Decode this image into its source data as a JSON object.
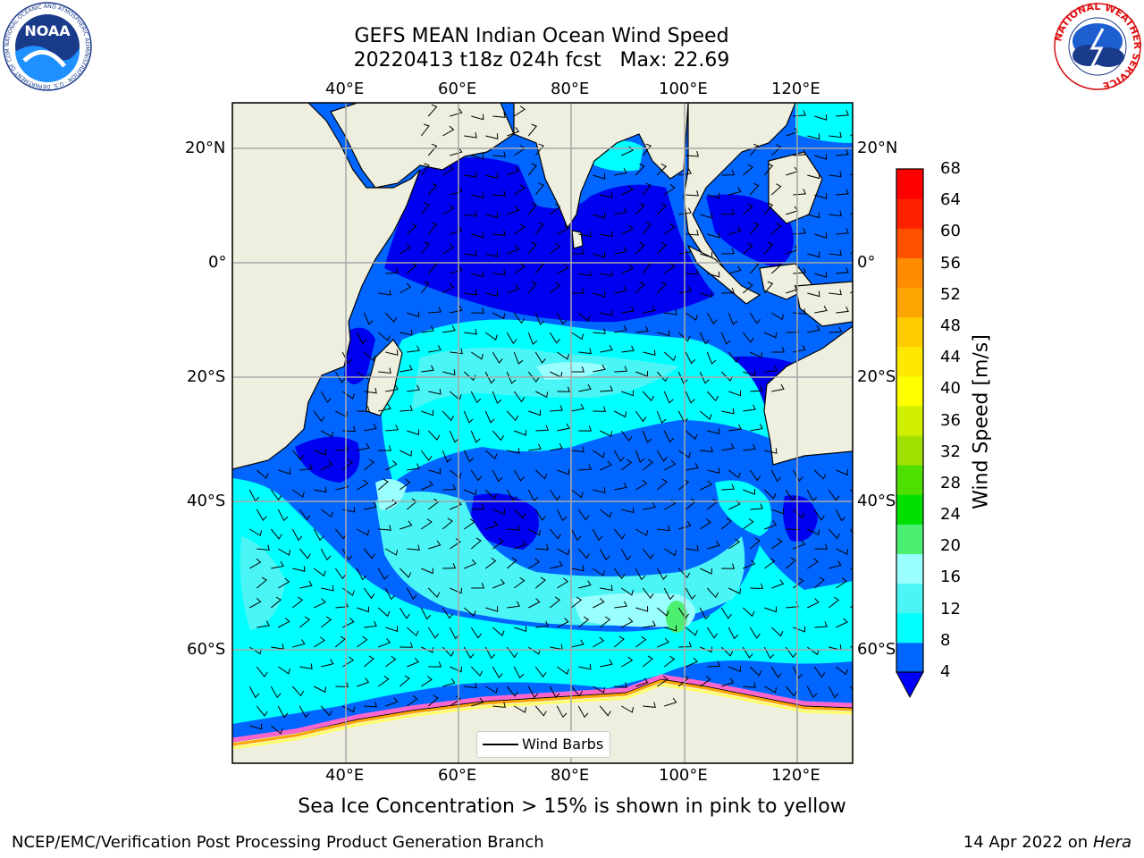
{
  "title": {
    "line1": "GEFS MEAN Indian Ocean Wind Speed",
    "line2": "20220413 t18z 024h fcst   Max: 22.69"
  },
  "logos": {
    "noaa": {
      "center_text": "NOAA",
      "ring_text": "NATIONAL OCEANIC AND ATMOSPHERIC ADMINISTRATION · U.S. DEPARTMENT OF COMMERCE"
    },
    "nws": {
      "ring_text": "NATIONAL WEATHER SERVICE"
    }
  },
  "map": {
    "lon_labels": [
      "40°E",
      "60°E",
      "80°E",
      "100°E",
      "120°E"
    ],
    "lat_labels": [
      "20°N",
      "0°",
      "20°S",
      "40°S",
      "60°S"
    ],
    "legend_label": "Wind Barbs",
    "colors": {
      "land": "#efefdf",
      "ice_shelf": "#ffffff",
      "ice_edge": [
        "#ff66cc",
        "#ffa500",
        "#ffff66"
      ],
      "grid": "#a8a8a8"
    }
  },
  "colorbar": {
    "title": "Wind Speed [m/s]",
    "ticks": [
      "4",
      "8",
      "12",
      "16",
      "20",
      "24",
      "28",
      "32",
      "36",
      "40",
      "44",
      "48",
      "52",
      "56",
      "60",
      "64",
      "68"
    ],
    "colors": [
      "#0066ff",
      "#00ffff",
      "#4cf5f5",
      "#99ffff",
      "#4cf071",
      "#00e000",
      "#4cdf00",
      "#a0e000",
      "#d0f000",
      "#ffff00",
      "#ffe800",
      "#ffcc00",
      "#ffa500",
      "#ff8c00",
      "#ff5000",
      "#ff2000",
      "#ff0000"
    ],
    "under_color": "#0000ff"
  },
  "caption": "Sea Ice Concentration > 15% is shown in pink to yellow",
  "footer": {
    "left": "NCEP/EMC/Verification Post Processing Product Generation Branch",
    "date": "14 Apr 2022 on",
    "host": "Hera"
  }
}
